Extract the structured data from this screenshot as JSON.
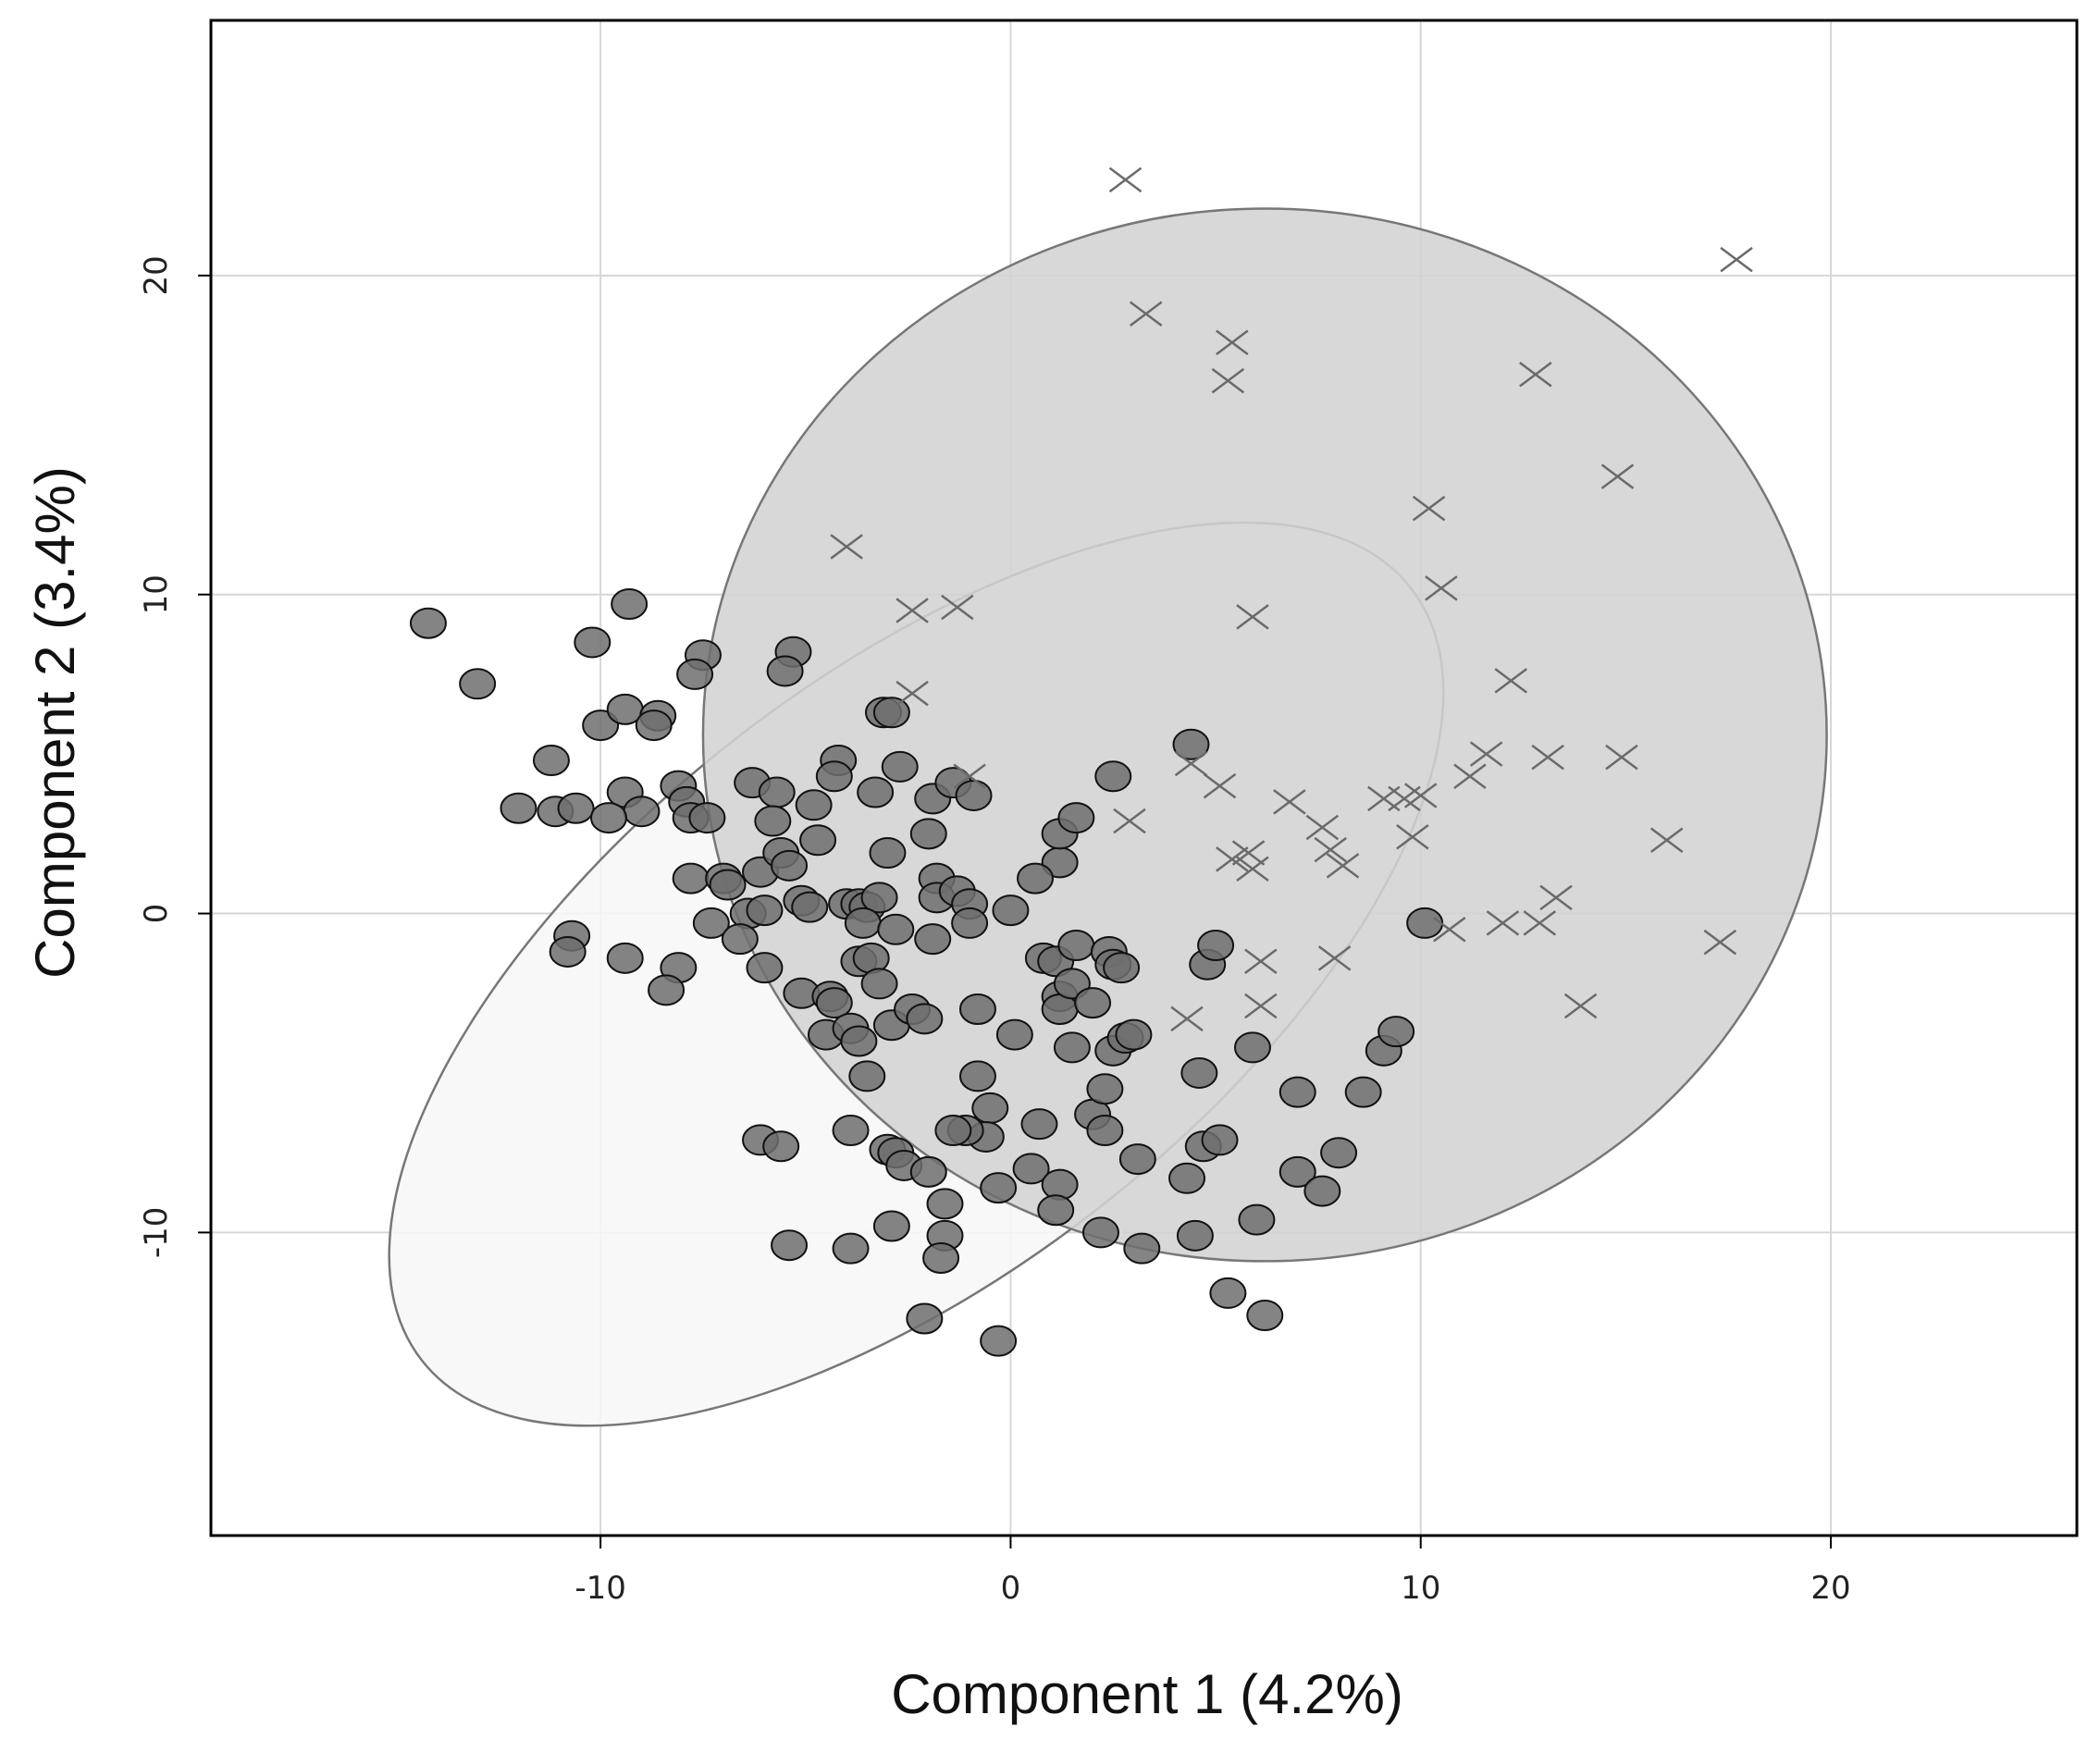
{
  "chart_data": {
    "type": "scatter",
    "xlabel": "Component 1 (4.2%)",
    "ylabel": "Component 2 (3.4%)",
    "xlim": [
      -19.5,
      26
    ],
    "ylim": [
      -19.5,
      28
    ],
    "x_ticks": [
      -10,
      0,
      10,
      20
    ],
    "y_ticks": [
      -10,
      0,
      10,
      20
    ],
    "x_tick_labels": [
      "-10",
      "0",
      "10",
      "20"
    ],
    "y_tick_labels": [
      "-10",
      "0",
      "10",
      "20"
    ],
    "grid": true,
    "legend": "none",
    "colors": {
      "circle_fill": "#6e6e6e",
      "circle_stroke": "#111111",
      "cross_stroke": "#6a6a6a",
      "ellipse_circles_fill": "#f7f7f7",
      "ellipse_crosses_fill": "#d3d3d3",
      "ellipse_stroke": "#777777",
      "grid": "#d6d6d6"
    },
    "series": [
      {
        "marker": "circle",
        "points": [
          [
            -14.2,
            9.1
          ],
          [
            -13,
            7.2
          ],
          [
            -9.3,
            9.7
          ],
          [
            -10.2,
            8.5
          ],
          [
            -5.3,
            8.2
          ],
          [
            -7.5,
            8.1
          ],
          [
            -7.7,
            7.5
          ],
          [
            -5.5,
            7.6
          ],
          [
            -10,
            5.9
          ],
          [
            -9.4,
            6.4
          ],
          [
            -8.6,
            6.2
          ],
          [
            -8.7,
            5.9
          ],
          [
            -11.2,
            4.8
          ],
          [
            -12,
            3.3
          ],
          [
            -11.1,
            3.2
          ],
          [
            -10.6,
            3.3
          ],
          [
            -9.4,
            3.8
          ],
          [
            -9.0,
            3.2
          ],
          [
            -9.8,
            3.0
          ],
          [
            -8.1,
            4.0
          ],
          [
            -7.9,
            3.5
          ],
          [
            -7.8,
            3.0
          ],
          [
            -7.4,
            3.0
          ],
          [
            -6.3,
            4.1
          ],
          [
            -5.7,
            3.8
          ],
          [
            -5.8,
            2.9
          ],
          [
            -4.8,
            3.4
          ],
          [
            -4.2,
            4.8
          ],
          [
            -4.3,
            4.3
          ],
          [
            -3.1,
            6.3
          ],
          [
            -2.9,
            6.3
          ],
          [
            -3.3,
            3.8
          ],
          [
            -3.0,
            1.9
          ],
          [
            -2.7,
            4.6
          ],
          [
            -2.0,
            2.5
          ],
          [
            -1.9,
            3.6
          ],
          [
            -1.4,
            4.1
          ],
          [
            -0.9,
            3.7
          ],
          [
            -7.8,
            1.1
          ],
          [
            -7.0,
            1.1
          ],
          [
            -6.9,
            0.9
          ],
          [
            -6.1,
            1.3
          ],
          [
            -5.6,
            1.9
          ],
          [
            -5.4,
            1.5
          ],
          [
            -5.1,
            0.4
          ],
          [
            -4.9,
            0.2
          ],
          [
            -4.7,
            2.3
          ],
          [
            -4.0,
            0.3
          ],
          [
            -3.7,
            0.3
          ],
          [
            -3.5,
            0.2
          ],
          [
            -3.2,
            0.5
          ],
          [
            -1.8,
            1.1
          ],
          [
            -1.8,
            0.5
          ],
          [
            -1.3,
            0.7
          ],
          [
            -1.0,
            0.3
          ],
          [
            -1.0,
            -0.3
          ],
          [
            0.0,
            0.1
          ],
          [
            -3.6,
            -0.3
          ],
          [
            -2.8,
            -0.5
          ],
          [
            -7.3,
            -0.3
          ],
          [
            -6.4,
            0.0
          ],
          [
            -6.0,
            0.1
          ],
          [
            -6.6,
            -0.8
          ],
          [
            -10.7,
            -0.7
          ],
          [
            -10.8,
            -1.2
          ],
          [
            -9.4,
            -1.4
          ],
          [
            -8.1,
            -1.7
          ],
          [
            -8.4,
            -2.4
          ],
          [
            -6.0,
            -1.7
          ],
          [
            -5.1,
            -2.5
          ],
          [
            -4.4,
            -2.6
          ],
          [
            -4.3,
            -2.8
          ],
          [
            -3.7,
            -1.5
          ],
          [
            -3.4,
            -1.4
          ],
          [
            -3.2,
            -2.2
          ],
          [
            -4.5,
            -3.8
          ],
          [
            -3.9,
            -3.6
          ],
          [
            -3.7,
            -4.0
          ],
          [
            -2.9,
            -3.5
          ],
          [
            -2.4,
            -3.0
          ],
          [
            -2.1,
            -3.3
          ],
          [
            -1.9,
            -0.8
          ],
          [
            -0.8,
            -3.0
          ],
          [
            0.1,
            -3.8
          ],
          [
            0.8,
            -1.4
          ],
          [
            1.1,
            -1.5
          ],
          [
            1.2,
            -2.6
          ],
          [
            1.2,
            -3.0
          ],
          [
            1.5,
            -2.2
          ],
          [
            1.6,
            -1.0
          ],
          [
            2.4,
            -1.2
          ],
          [
            2.5,
            -1.6
          ],
          [
            2.7,
            -1.7
          ],
          [
            2.0,
            -2.8
          ],
          [
            1.5,
            -4.2
          ],
          [
            2.5,
            -4.3
          ],
          [
            2.8,
            -3.9
          ],
          [
            3.0,
            -3.8
          ],
          [
            1.2,
            1.6
          ],
          [
            1.2,
            2.5
          ],
          [
            1.6,
            3.0
          ],
          [
            0.6,
            1.1
          ],
          [
            2.5,
            4.3
          ],
          [
            4.4,
            5.3
          ],
          [
            4.8,
            -1.6
          ],
          [
            5.0,
            -1.0
          ],
          [
            -3.5,
            -5.1
          ],
          [
            -0.8,
            -5.1
          ],
          [
            -0.5,
            -6.1
          ],
          [
            -0.6,
            -7.0
          ],
          [
            -1.1,
            -6.8
          ],
          [
            -1.4,
            -6.8
          ],
          [
            -6.1,
            -7.1
          ],
          [
            -5.6,
            -7.3
          ],
          [
            -3.9,
            -6.8
          ],
          [
            -3.0,
            -7.4
          ],
          [
            -2.8,
            -7.5
          ],
          [
            -2.6,
            -7.9
          ],
          [
            -2.0,
            -8.1
          ],
          [
            -1.6,
            -9.1
          ],
          [
            -0.3,
            -8.6
          ],
          [
            0.5,
            -8.0
          ],
          [
            0.7,
            -6.6
          ],
          [
            1.2,
            -8.5
          ],
          [
            1.1,
            -9.3
          ],
          [
            2.0,
            -6.3
          ],
          [
            2.3,
            -6.8
          ],
          [
            2.3,
            -5.5
          ],
          [
            3.1,
            -7.7
          ],
          [
            4.3,
            -8.3
          ],
          [
            4.6,
            -5.0
          ],
          [
            4.7,
            -7.3
          ],
          [
            5.1,
            -7.1
          ],
          [
            5.9,
            -4.2
          ],
          [
            7.0,
            -5.6
          ],
          [
            7.0,
            -8.1
          ],
          [
            7.6,
            -8.7
          ],
          [
            8.0,
            -7.5
          ],
          [
            8.6,
            -5.6
          ],
          [
            9.1,
            -4.3
          ],
          [
            9.4,
            -3.7
          ],
          [
            10.1,
            -0.3
          ],
          [
            -5.4,
            -10.4
          ],
          [
            -3.9,
            -10.5
          ],
          [
            -2.9,
            -9.8
          ],
          [
            -1.6,
            -10.1
          ],
          [
            -1.7,
            -10.8
          ],
          [
            -2.1,
            -12.7
          ],
          [
            -0.3,
            -13.4
          ],
          [
            2.2,
            -10.0
          ],
          [
            3.2,
            -10.5
          ],
          [
            4.5,
            -10.1
          ],
          [
            5.3,
            -11.9
          ],
          [
            6.2,
            -12.6
          ],
          [
            6.0,
            -9.6
          ]
        ]
      },
      {
        "marker": "cross",
        "points": [
          [
            2.8,
            23.0
          ],
          [
            3.3,
            18.8
          ],
          [
            5.4,
            17.9
          ],
          [
            5.3,
            16.7
          ],
          [
            17.7,
            20.5
          ],
          [
            12.8,
            16.9
          ],
          [
            14.8,
            13.7
          ],
          [
            10.2,
            12.7
          ],
          [
            10.5,
            10.2
          ],
          [
            -4.0,
            11.5
          ],
          [
            -2.4,
            9.5
          ],
          [
            -1.3,
            9.6
          ],
          [
            5.9,
            9.3
          ],
          [
            12.2,
            7.3
          ],
          [
            -2.4,
            6.9
          ],
          [
            4.4,
            4.7
          ],
          [
            5.1,
            4.0
          ],
          [
            6.8,
            3.5
          ],
          [
            7.6,
            2.7
          ],
          [
            9.1,
            3.6
          ],
          [
            9.6,
            3.6
          ],
          [
            10.0,
            3.7
          ],
          [
            9.8,
            2.4
          ],
          [
            11.2,
            4.3
          ],
          [
            11.6,
            5.0
          ],
          [
            13.1,
            4.9
          ],
          [
            14.9,
            4.9
          ],
          [
            16.0,
            2.3
          ],
          [
            -1.0,
            4.3
          ],
          [
            2.9,
            2.9
          ],
          [
            5.4,
            1.7
          ],
          [
            5.8,
            1.9
          ],
          [
            5.9,
            1.4
          ],
          [
            7.8,
            2.0
          ],
          [
            8.1,
            1.5
          ],
          [
            13.3,
            0.5
          ],
          [
            12.0,
            -0.3
          ],
          [
            12.9,
            -0.3
          ],
          [
            10.7,
            -0.5
          ],
          [
            6.1,
            -1.5
          ],
          [
            7.9,
            -1.4
          ],
          [
            6.1,
            -2.9
          ],
          [
            4.3,
            -3.3
          ],
          [
            13.9,
            -2.9
          ],
          [
            17.3,
            -0.9
          ]
        ]
      }
    ],
    "ellipses": [
      {
        "group": "circle",
        "center": [
          -2.3,
          -1.9
        ],
        "semi_axes": [
          15.3,
          9.3
        ],
        "rotation_deg": -38
      },
      {
        "group": "cross",
        "center": [
          6.2,
          5.6
        ],
        "semi_axes": [
          13.7,
          16.5
        ],
        "rotation_deg": 0
      }
    ]
  }
}
